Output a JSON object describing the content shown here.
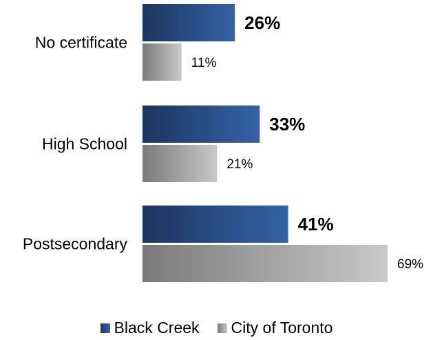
{
  "chart_data": {
    "type": "bar",
    "orientation": "horizontal",
    "categories": [
      "No certificate",
      "High School",
      "Postsecondary"
    ],
    "series": [
      {
        "name": "Black Creek",
        "values": [
          26,
          33,
          41
        ],
        "labels": [
          "26%",
          "33%",
          "41%"
        ],
        "color": "#2a5592"
      },
      {
        "name": "City of Toronto",
        "values": [
          11,
          21,
          69
        ],
        "labels": [
          "11%",
          "21%",
          "69%"
        ],
        "color": "#a6a6a6"
      }
    ],
    "unit": "%",
    "xlim": [
      0,
      100
    ],
    "grid": false,
    "legend_position": "bottom"
  }
}
